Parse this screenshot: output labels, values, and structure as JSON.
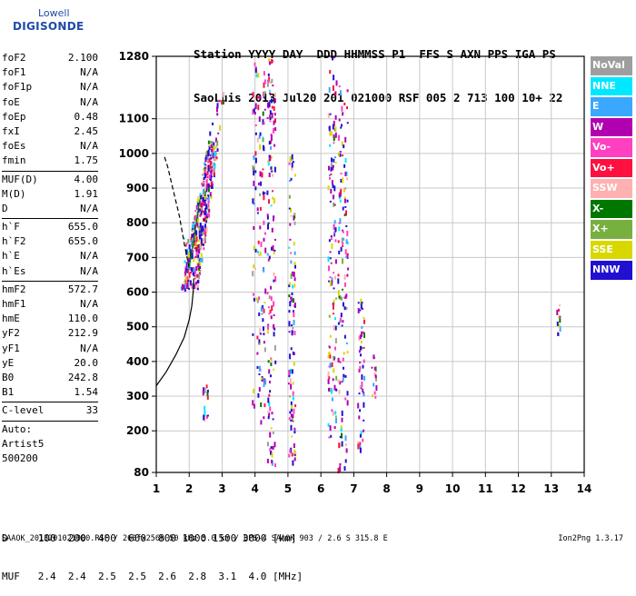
{
  "logo": {
    "line1": "Lowell",
    "line2": "DIGISONDE"
  },
  "header": {
    "labels": "Station YYYY DAY  DDD HHMMSS P1  FFS S AXN PPS IGA PS",
    "values": "SaoLuis 2013 Jul20 201 021000 RSF 005 2 713 100 10+ 22"
  },
  "params_group1": [
    {
      "k": "foF2",
      "v": "2.100"
    },
    {
      "k": "foF1",
      "v": "N/A"
    },
    {
      "k": "foF1p",
      "v": "N/A"
    },
    {
      "k": "foE",
      "v": "N/A"
    },
    {
      "k": "foEp",
      "v": "0.48"
    },
    {
      "k": "fxI",
      "v": "2.45"
    },
    {
      "k": "foEs",
      "v": "N/A"
    },
    {
      "k": "fmin",
      "v": "1.75"
    }
  ],
  "params_group2": [
    {
      "k": "MUF(D)",
      "v": "4.00"
    },
    {
      "k": "M(D)",
      "v": "1.91"
    },
    {
      "k": "D",
      "v": "N/A"
    }
  ],
  "params_group3": [
    {
      "k": "h`F",
      "v": "655.0"
    },
    {
      "k": "h`F2",
      "v": "655.0"
    },
    {
      "k": "h`E",
      "v": "N/A"
    },
    {
      "k": "h`Es",
      "v": "N/A"
    }
  ],
  "params_group4": [
    {
      "k": "hmF2",
      "v": "572.7"
    },
    {
      "k": "hmF1",
      "v": "N/A"
    },
    {
      "k": "hmE",
      "v": "110.0"
    },
    {
      "k": "yF2",
      "v": "212.9"
    },
    {
      "k": "yF1",
      "v": "N/A"
    },
    {
      "k": "yE",
      "v": "20.0"
    },
    {
      "k": "B0",
      "v": "242.8"
    },
    {
      "k": "B1",
      "v": "1.54"
    }
  ],
  "params_group5": [
    {
      "k": "C-level",
      "v": "33"
    }
  ],
  "auto_lines": [
    "Auto:",
    "Artist5",
    "500200"
  ],
  "legend": [
    {
      "label": "NoVal",
      "color": "#9e9e9e"
    },
    {
      "label": "NNE",
      "color": "#00e8ff"
    },
    {
      "label": "E",
      "color": "#3aa8ff"
    },
    {
      "label": "W",
      "color": "#b000b0"
    },
    {
      "label": "Vo-",
      "color": "#ff40c0"
    },
    {
      "label": "Vo+",
      "color": "#ff1040"
    },
    {
      "label": "SSW",
      "color": "#ffb0b0"
    },
    {
      "label": "X-",
      "color": "#007800"
    },
    {
      "label": "X+",
      "color": "#78b040"
    },
    {
      "label": "SSE",
      "color": "#d8d800"
    },
    {
      "label": "NNW",
      "color": "#2010d0"
    }
  ],
  "muf_table": {
    "d_row": "D     100  200  400  600  800 1000 1500 3000 [km]",
    "muf_row": "MUF   2.4  2.4  2.5  2.5  2.6  2.8  3.1  4.0 [MHz]"
  },
  "footer": "SAAOK_2013201021000.RSF / 260fx256h 50 kHz 5.0 km / DPS-4 SAAOK 903 / 2.6 S 315.8 E",
  "version": "Ion2Png 1.3.17",
  "chart_data": {
    "type": "scatter",
    "title": "",
    "xlabel": "",
    "ylabel": "",
    "xlim": [
      1,
      14
    ],
    "ylim": [
      80,
      1280
    ],
    "x_ticks": [
      "1",
      "2",
      "3",
      "4",
      "5",
      "6",
      "7",
      "8",
      "9",
      "10",
      "11",
      "12",
      "13",
      "14"
    ],
    "y_ticks": [
      "80",
      "200",
      "300",
      "400",
      "500",
      "600",
      "700",
      "800",
      "900",
      "1000",
      "1100",
      "1280"
    ],
    "grid": true,
    "legend_position": "right",
    "profile_curve": [
      [
        1.0,
        330
      ],
      [
        1.3,
        370
      ],
      [
        1.6,
        420
      ],
      [
        1.85,
        470
      ],
      [
        2.0,
        520
      ],
      [
        2.08,
        560
      ],
      [
        2.12,
        600
      ],
      [
        2.14,
        640
      ]
    ],
    "trace_dashed": [
      [
        2.0,
        670
      ],
      [
        1.85,
        740
      ],
      [
        1.7,
        820
      ],
      [
        1.5,
        900
      ],
      [
        1.35,
        960
      ],
      [
        1.25,
        990
      ]
    ],
    "trace_solid": [
      [
        2.0,
        670
      ],
      [
        2.1,
        730
      ],
      [
        2.2,
        790
      ],
      [
        2.28,
        840
      ],
      [
        2.35,
        880
      ]
    ],
    "echo_clusters": [
      {
        "name": "F-trace",
        "x": [
          1.75,
          3.2
        ],
        "y": [
          610,
          1180
        ]
      },
      {
        "name": "col-1.9",
        "x": [
          1.8,
          1.95
        ],
        "y": [
          620,
          760
        ]
      },
      {
        "name": "col-2.45",
        "x": [
          2.4,
          2.55
        ],
        "y": [
          230,
          350
        ]
      },
      {
        "name": "col-4.1",
        "x": [
          3.9,
          4.3
        ],
        "y": [
          180,
          1280
        ]
      },
      {
        "name": "col-4.5",
        "x": [
          4.35,
          4.6
        ],
        "y": [
          100,
          1280
        ]
      },
      {
        "name": "col-5.1",
        "x": [
          5.0,
          5.2
        ],
        "y": [
          90,
          1000
        ]
      },
      {
        "name": "col-6.3",
        "x": [
          6.2,
          6.45
        ],
        "y": [
          180,
          1280
        ]
      },
      {
        "name": "col-6.6",
        "x": [
          6.5,
          6.8
        ],
        "y": [
          90,
          1200
        ]
      },
      {
        "name": "col-7.2",
        "x": [
          7.1,
          7.3
        ],
        "y": [
          150,
          600
        ]
      },
      {
        "name": "col-7.6",
        "x": [
          7.5,
          7.7
        ],
        "y": [
          300,
          420
        ]
      },
      {
        "name": "col-13.2",
        "x": [
          13.15,
          13.25
        ],
        "y": [
          480,
          580
        ]
      }
    ]
  }
}
